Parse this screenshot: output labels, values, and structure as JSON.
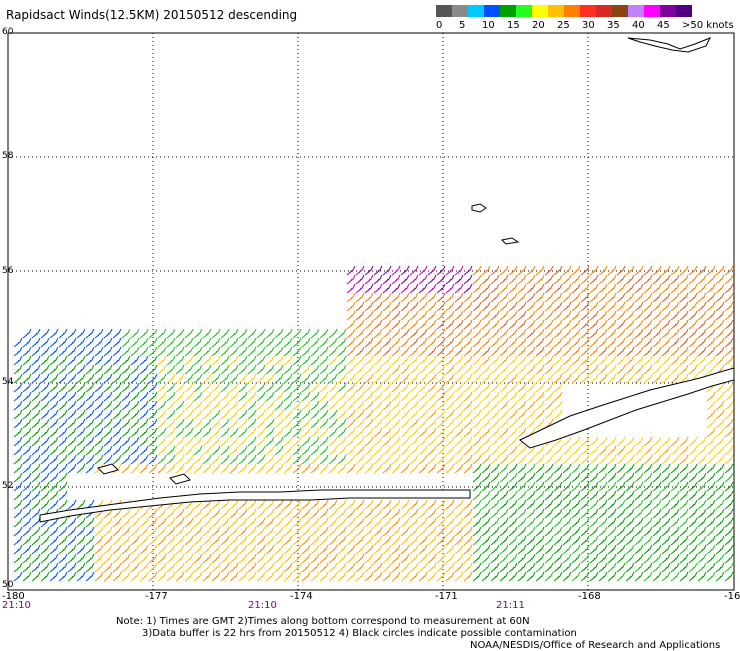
{
  "title": "Rapidsact Winds(12.5KM) 20150512 descending",
  "colorbar": {
    "colors": [
      "#555555",
      "#8a8a8a",
      "#00c8ff",
      "#0050ff",
      "#00a000",
      "#20ff20",
      "#ffff00",
      "#ffc000",
      "#ff8000",
      "#ff3020",
      "#d82828",
      "#8b4513",
      "#c080ff",
      "#ff00ff",
      "#8000a0",
      "#500080"
    ],
    "labels": [
      "0",
      "5",
      "10",
      "15",
      "20",
      "25",
      "30",
      "35",
      "40",
      "45",
      ">50 knots"
    ]
  },
  "lat_labels": [
    "60",
    "58",
    "56",
    "54",
    "52",
    "50"
  ],
  "lon_labels": [
    "-180",
    "-177",
    "-174",
    "-171",
    "-168",
    "-16"
  ],
  "time_labels": [
    "21:10",
    "21:10",
    "21:11"
  ],
  "notes": {
    "line1": "Note: 1) Times are GMT 2)Times along bottom correspond to measurement at 60N",
    "line2": "3)Data buffer is 22 hrs from 20150512 4) Black circles indicate possible contamination",
    "line3": "NOAA/NESDIS/Office of Research and Applications"
  },
  "chart_data": {
    "type": "map",
    "variable": "wind speed (knots)",
    "lat_range": [
      50,
      60
    ],
    "lon_range": [
      -180,
      -165
    ],
    "grid": true
  }
}
